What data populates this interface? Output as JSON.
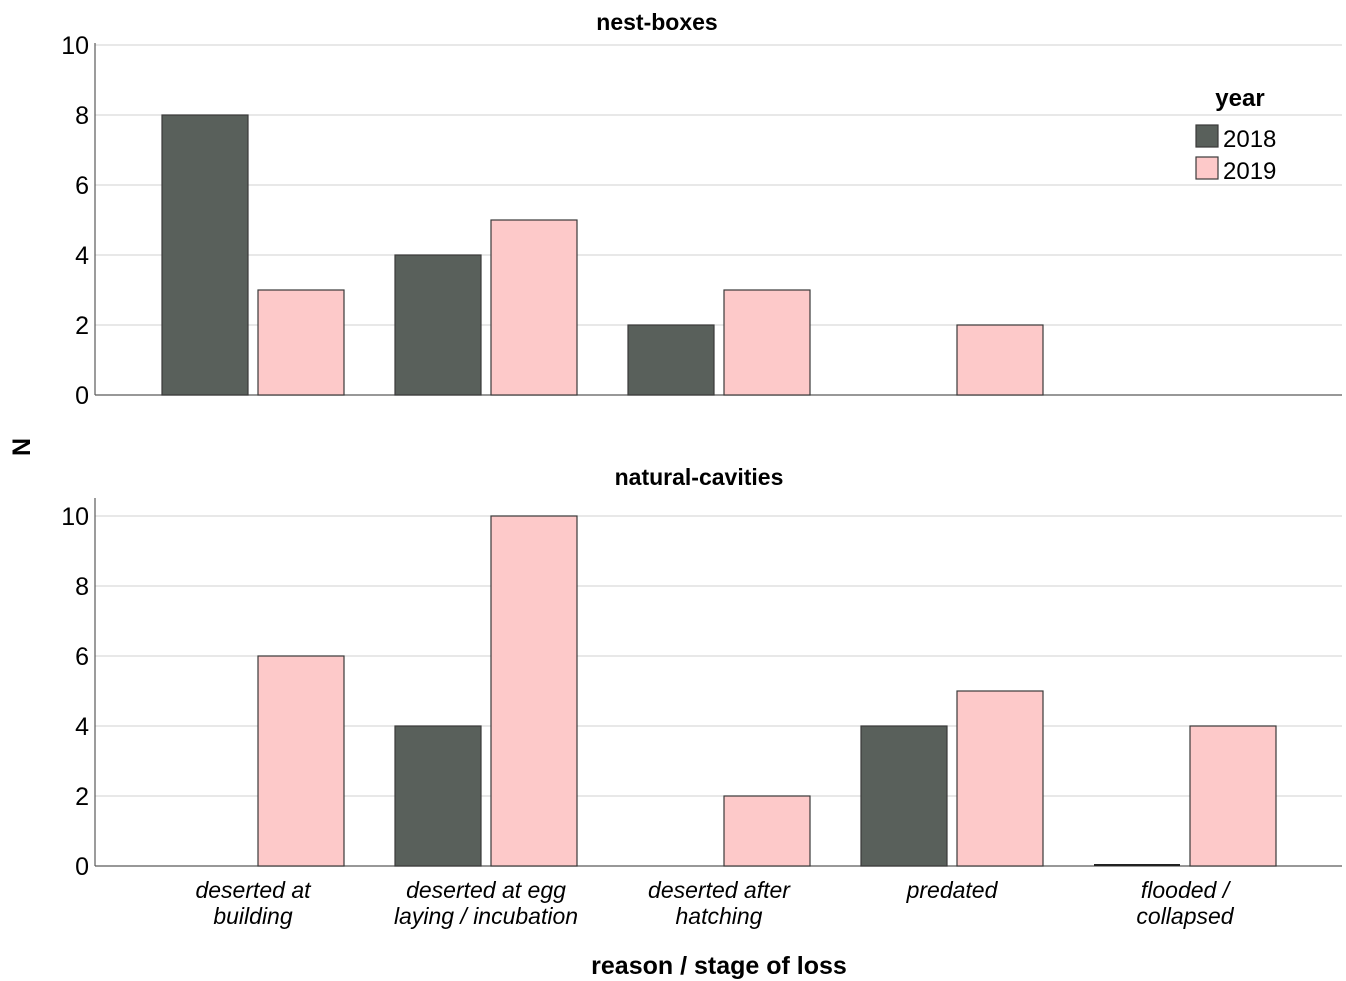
{
  "chart_data": {
    "type": "bar",
    "xlabel": "reason / stage of loss",
    "ylabel": "N",
    "ylim": [
      0,
      10
    ],
    "yticks": [
      "0",
      "2",
      "4",
      "6",
      "8",
      "10"
    ],
    "grid": true,
    "legend": {
      "title": "year",
      "placement": "top-right"
    },
    "categories": [
      [
        "deserted at",
        "building"
      ],
      [
        "deserted at egg",
        "laying / incubation"
      ],
      [
        "deserted after",
        "hatching"
      ],
      [
        "predated"
      ],
      [
        "flooded /",
        "collapsed"
      ]
    ],
    "series_styles": [
      {
        "name": "2018",
        "color": "#59605b"
      },
      {
        "name": "2019",
        "color": "#fdc9c9"
      }
    ],
    "panels": [
      {
        "title": "nest-boxes",
        "series": [
          {
            "name": "2018",
            "values": [
              8,
              4,
              2,
              0,
              0
            ]
          },
          {
            "name": "2019",
            "values": [
              3,
              5,
              3,
              2,
              0
            ]
          }
        ]
      },
      {
        "title": "natural-cavities",
        "series": [
          {
            "name": "2018",
            "values": [
              0,
              4,
              0,
              4,
              0
            ]
          },
          {
            "name": "2019",
            "values": [
              6,
              10,
              2,
              5,
              4
            ]
          }
        ]
      }
    ]
  }
}
